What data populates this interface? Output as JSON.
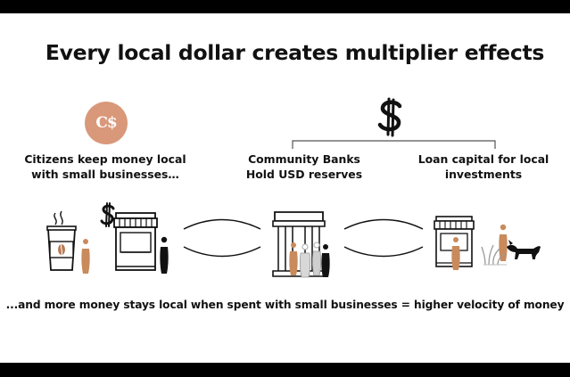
{
  "slide": {
    "title": "Every local dollar creates multiplier effects",
    "footer": "...and more money stays local when spent with small businesses = higher velocity of money"
  },
  "nodes": {
    "citizens": {
      "caption_line1": "Citizens keep money local",
      "caption_line2": "with small businesses…",
      "coin_label": "C$"
    },
    "banks": {
      "caption_line1": "Community Banks",
      "caption_line2": "Hold USD reserves"
    },
    "loan": {
      "caption_line1": "Loan capital for local",
      "caption_line2": "investments"
    }
  },
  "colors": {
    "accent": "#d9987a",
    "ink": "#111111",
    "skin": "#c98a5c"
  },
  "icons": [
    "coffee-cup-icon",
    "dollar-sign-icon",
    "storefront-icon",
    "bank-building-icon",
    "person-icon",
    "dog-icon",
    "grass-icon"
  ]
}
